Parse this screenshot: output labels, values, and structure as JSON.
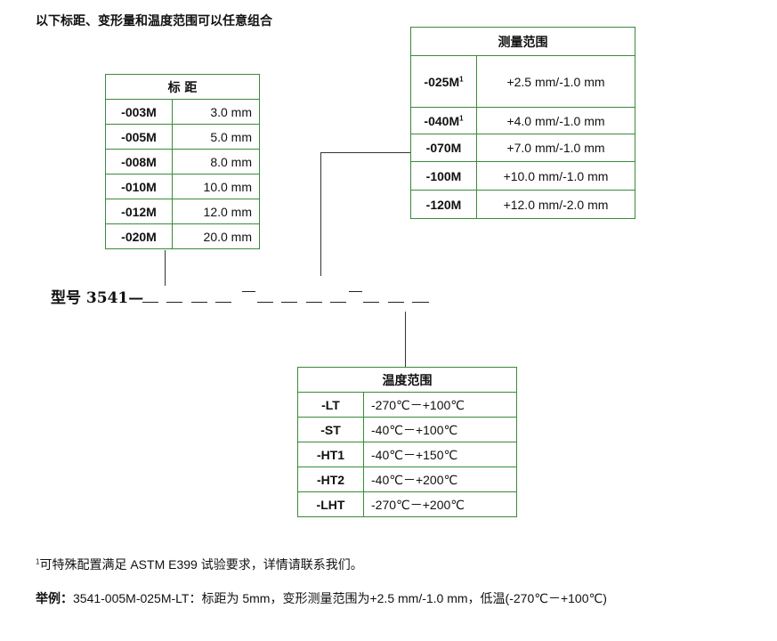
{
  "heading": "以下标距、变形量和温度范围可以任意组合",
  "gauge_table": {
    "header": "标 距",
    "rows": [
      {
        "code": "-003M",
        "value": "3.0 mm"
      },
      {
        "code": "-005M",
        "value": "5.0 mm"
      },
      {
        "code": "-008M",
        "value": "8.0 mm"
      },
      {
        "code": "-010M",
        "value": "10.0 mm"
      },
      {
        "code": "-012M",
        "value": "12.0 mm"
      },
      {
        "code": "-020M",
        "value": "20.0 mm"
      }
    ]
  },
  "range_table": {
    "header": "测量范围",
    "rows": [
      {
        "code": "-025M",
        "sup": "1",
        "value": "+2.5 mm/-1.0 mm"
      },
      {
        "code": "-040M",
        "sup": "1",
        "value": "+4.0 mm/-1.0 mm"
      },
      {
        "code": "-070M",
        "sup": "",
        "value": "+7.0 mm/-1.0 mm"
      },
      {
        "code": "-100M",
        "sup": "",
        "value": "+10.0 mm/-1.0 mm"
      },
      {
        "code": "-120M",
        "sup": "",
        "value": "+12.0 mm/-2.0 mm"
      }
    ]
  },
  "temp_table": {
    "header": "温度范围",
    "rows": [
      {
        "code": "-LT",
        "value": "-270℃－+100℃"
      },
      {
        "code": "-ST",
        "value": "-40℃－+100℃"
      },
      {
        "code": "-HT1",
        "value": "-40℃－+150℃"
      },
      {
        "code": "-HT2",
        "value": "-40℃－+200℃"
      },
      {
        "code": "-LHT",
        "value": "-270℃－+200℃"
      }
    ]
  },
  "model": {
    "label": "型号 3541—"
  },
  "footnote": {
    "sup": "1",
    "text": "可特殊配置满足 ASTM E399 试验要求，详情请联系我们。"
  },
  "example": {
    "label": "举例：",
    "text": "3541-005M-025M-LT：标距为 5mm，变形测量范围为+2.5 mm/-1.0 mm，低温(-270℃－+100℃)"
  },
  "colors": {
    "border": "#3a8a3a"
  }
}
